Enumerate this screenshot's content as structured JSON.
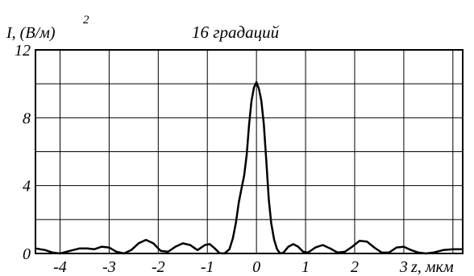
{
  "chart_data": {
    "type": "line",
    "title": "16 градаций",
    "ylabel": "I, (В/м)",
    "ylabel_sup": "2",
    "xlabel": "z, мкм",
    "xlim": [
      -4.5,
      4.2
    ],
    "ylim": [
      0,
      12
    ],
    "grid": true,
    "x_ticks": [
      -4,
      -3,
      -2,
      -1,
      0,
      1,
      2,
      3
    ],
    "x_tick_labels": [
      "-4",
      "-3",
      "-2",
      "-1",
      "0",
      "1",
      "2",
      "3"
    ],
    "y_ticks": [
      0,
      4,
      8,
      12
    ],
    "y_tick_labels": [
      "0",
      "4",
      "8",
      "12"
    ],
    "y_grid": [
      0,
      2,
      4,
      6,
      8,
      10,
      12
    ],
    "x_grid": [
      -4,
      -3,
      -2,
      -1,
      0,
      1,
      2,
      3,
      4
    ],
    "series": [
      {
        "color": "#000000",
        "x": [
          -4.5,
          -4.3,
          -4.15,
          -4.0,
          -3.8,
          -3.6,
          -3.45,
          -3.3,
          -3.15,
          -3.0,
          -2.85,
          -2.7,
          -2.55,
          -2.4,
          -2.25,
          -2.1,
          -1.95,
          -1.8,
          -1.65,
          -1.5,
          -1.35,
          -1.2,
          -1.05,
          -0.95,
          -0.85,
          -0.75,
          -0.65,
          -0.55,
          -0.48,
          -0.42,
          -0.36,
          -0.3,
          -0.25,
          -0.2,
          -0.15,
          -0.1,
          -0.05,
          0.0,
          0.05,
          0.1,
          0.15,
          0.2,
          0.25,
          0.3,
          0.36,
          0.42,
          0.48,
          0.55,
          0.65,
          0.75,
          0.85,
          0.95,
          1.05,
          1.2,
          1.35,
          1.5,
          1.65,
          1.8,
          1.95,
          2.1,
          2.25,
          2.4,
          2.55,
          2.7,
          2.85,
          3.0,
          3.15,
          3.3,
          3.45,
          3.6,
          3.8,
          4.0,
          4.2
        ],
        "y": [
          0.3,
          0.2,
          0.05,
          0.0,
          0.15,
          0.3,
          0.3,
          0.25,
          0.4,
          0.35,
          0.1,
          0.0,
          0.2,
          0.6,
          0.8,
          0.6,
          0.15,
          0.1,
          0.4,
          0.6,
          0.5,
          0.2,
          0.5,
          0.55,
          0.3,
          0.02,
          0.0,
          0.25,
          0.9,
          1.8,
          3.0,
          3.9,
          4.6,
          5.8,
          7.6,
          9.0,
          9.8,
          10.1,
          9.7,
          9.0,
          7.6,
          5.5,
          3.2,
          1.8,
          0.8,
          0.25,
          0.0,
          0.05,
          0.4,
          0.55,
          0.4,
          0.1,
          0.05,
          0.35,
          0.5,
          0.3,
          0.05,
          0.1,
          0.4,
          0.75,
          0.7,
          0.35,
          0.05,
          0.05,
          0.35,
          0.4,
          0.2,
          0.05,
          0.0,
          0.05,
          0.2,
          0.25,
          0.25
        ]
      }
    ]
  }
}
